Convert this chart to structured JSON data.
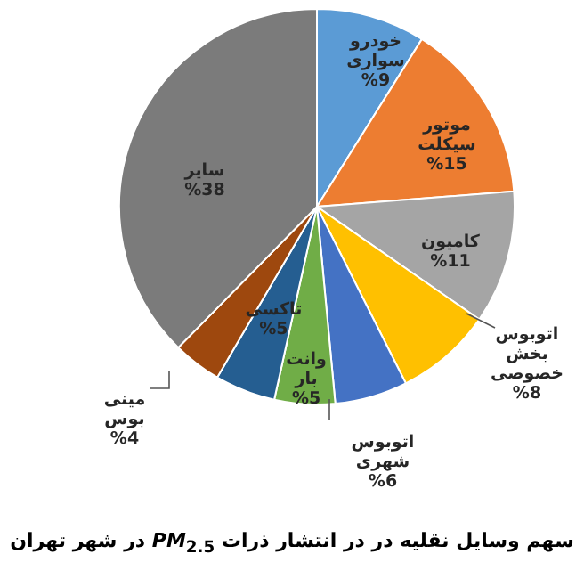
{
  "chart_data": {
    "type": "pie",
    "title": "سهم وسایل نقلیه در در انتشار ذرات *PM*$_{2.5}$ در شهر تهران",
    "categories": [
      "خودرو سواری",
      "موتور سیکلت",
      "کامیون",
      "اتوبوس بخش خصوصی",
      "اتوبوس شهری",
      "وانت بار",
      "تاکسی",
      "مینی بوس",
      "سایر"
    ],
    "values": [
      9,
      15,
      11,
      8,
      6,
      5,
      5,
      4,
      38
    ],
    "value_labels": [
      "%9",
      "%15",
      "%11",
      "%8",
      "%6",
      "%5",
      "%5",
      "%4",
      "%38"
    ],
    "colors": [
      "#5b9bd5",
      "#ed7d31",
      "#a5a5a5",
      "#ffc000",
      "#4472c4",
      "#70ad47",
      "#255e91",
      "#9e480e",
      "#7b7b7b"
    ]
  }
}
